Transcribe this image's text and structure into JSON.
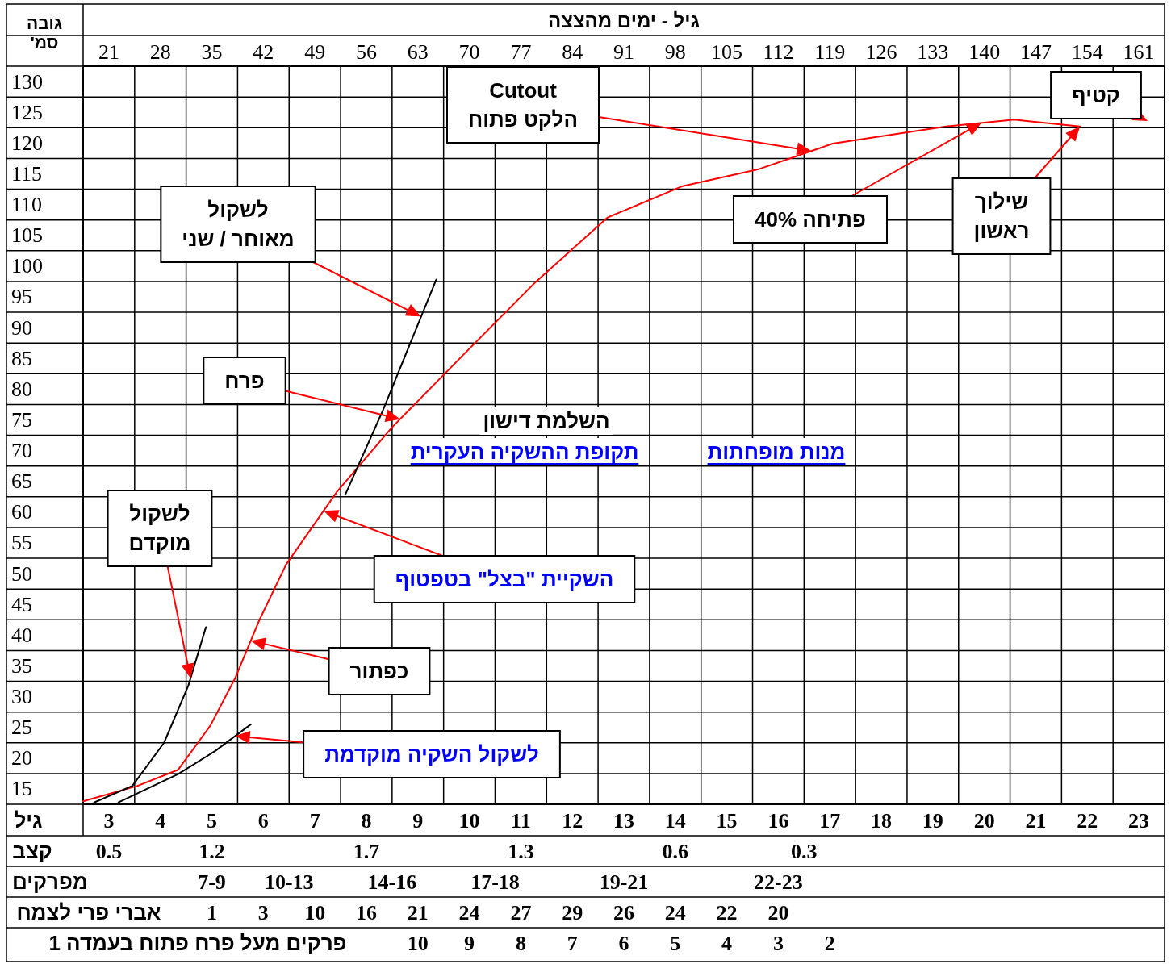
{
  "chart_data": {
    "type": "line",
    "xlabel": "גיל - ימים מהצצה",
    "ylabel": "גובה\nסמ'",
    "xlim": [
      17.5,
      164.5
    ],
    "ylim": [
      15,
      135
    ],
    "xticks": [
      21,
      28,
      35,
      42,
      49,
      56,
      63,
      70,
      77,
      84,
      91,
      98,
      105,
      112,
      119,
      126,
      133,
      140,
      147,
      154,
      161
    ],
    "yticks": [
      15,
      20,
      25,
      30,
      35,
      40,
      45,
      50,
      55,
      60,
      65,
      70,
      75,
      80,
      85,
      90,
      95,
      100,
      105,
      110,
      115,
      120,
      125,
      130
    ],
    "grid": true,
    "marker": "none",
    "line_style": "solid",
    "series": [
      {
        "color": "#ff0000",
        "x": [
          17.5,
          24.9,
          30.4,
          34.8,
          38.2,
          41.4,
          45.1,
          52.0,
          59.5,
          69.2,
          79.0,
          88.8,
          99.0,
          109.2,
          119.4,
          134.8,
          144.1,
          153.0
        ],
        "values": [
          15.5,
          18.0,
          20.6,
          27.8,
          35.6,
          44.8,
          54.0,
          65.8,
          76.3,
          88.1,
          99.9,
          110.4,
          115.5,
          118.2,
          122.4,
          125.2,
          126.3,
          125.2
        ]
      },
      {
        "color": "#000000",
        "x": [
          19.0,
          24.2,
          28.5,
          31.8,
          34.2
        ],
        "values": [
          15.3,
          18.0,
          25.0,
          34.3,
          43.8
        ]
      },
      {
        "color": "#000000",
        "x": [
          22.3,
          30.4,
          35.5,
          40.3
        ],
        "values": [
          15.3,
          19.9,
          23.7,
          28.0
        ]
      },
      {
        "color": "#000000",
        "x": [
          53.2,
          58.2,
          65.5
        ],
        "values": [
          65.5,
          78.9,
          100.3
        ]
      }
    ],
    "annotations": [
      {
        "text": "Cutout\nהלקט פתוח",
        "x": 116.5,
        "y": 121.2
      },
      "קטיף",
      {
        "text": "פתיחה 40%",
        "x": 139.6,
        "y": 125.8
      },
      {
        "text": "שילוך\nראשון",
        "x": 153.0,
        "y": 125.2
      },
      {
        "text": "לשקול\nמאוחר / שני",
        "x": 63.4,
        "y": 94.3
      },
      {
        "text": "פרח",
        "x": 60.6,
        "y": 77.6
      },
      {
        "text": "השקיית \"בצל\" בטפטוף",
        "x": 50.2,
        "y": 62.7
      },
      {
        "text": "לשקול\nמוקדם",
        "x": 32.1,
        "y": 35.5
      },
      {
        "text": "כפתור",
        "x": 40.3,
        "y": 41.6
      },
      {
        "text": "לשקול השקיה מוקדמת",
        "x": 38.2,
        "y": 26.1
      },
      "השלמת דישון",
      "תקופת ההשקיה העקרית",
      "מנות מופחתות",
      "גיל",
      "3",
      "4",
      "5",
      "6",
      "7",
      "8",
      "9",
      "10",
      "11",
      "12",
      "13",
      "14",
      "15",
      "16",
      "17",
      "18",
      "19",
      "20",
      "21",
      "22",
      "23",
      "קצב",
      "0.5",
      "1.2",
      "1.7",
      "1.3",
      "0.6",
      "0.3",
      "מפרקים",
      "7-9",
      "10-13",
      "14-16",
      "17-18",
      "19-21",
      "22-23",
      "אברי פרי לצמח",
      "1",
      "3",
      "10",
      "16",
      "21",
      "24",
      "27",
      "29",
      "26",
      "24",
      "22",
      "20",
      "פרקים  מעל פרח פתוח בעמדה 1",
      "10",
      "9",
      "8",
      "7",
      "6",
      "5",
      "4",
      "3",
      "2"
    ]
  }
}
